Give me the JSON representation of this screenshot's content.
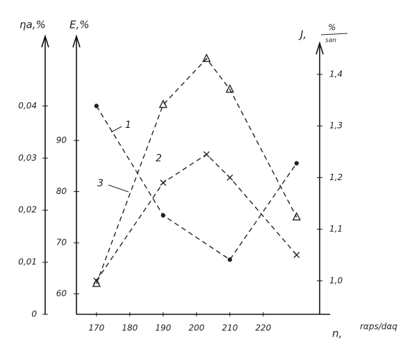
{
  "chart_data": {
    "type": "line",
    "y_label": "ηa,%",
    "y2_label": "E,%",
    "y3_label": "J,",
    "y3_unit_top": "%",
    "y3_unit_bottom": "san",
    "x_label": "n,",
    "x_unit": "rαps/dαq",
    "xlim": [
      164,
      239
    ],
    "xticks": [
      170,
      180,
      190,
      200,
      210,
      220
    ],
    "ylim": [
      0,
      0.053
    ],
    "yticks": [
      0,
      {
        "value": 0.01,
        "label": "0,01"
      },
      {
        "value": 0.02,
        "label": "0,02"
      },
      {
        "value": 0.03,
        "label": "0,03"
      },
      {
        "value": 0.04,
        "label": "0,04"
      }
    ],
    "y2lim": [
      56,
      110
    ],
    "y2ticks": [
      60,
      70,
      80,
      90
    ],
    "y3lim": [
      0.935,
      1.47
    ],
    "y3ticks": [
      {
        "value": 1.0,
        "label": "1,0"
      },
      {
        "value": 1.1,
        "label": "1,1"
      },
      {
        "value": 1.2,
        "label": "1,2"
      },
      {
        "value": 1.3,
        "label": "1,3"
      },
      {
        "value": 1.4,
        "label": "1,4"
      }
    ],
    "series": [
      {
        "name": "1",
        "axis": "y",
        "marker": "circle",
        "color": "#222",
        "x": [
          170,
          190,
          210,
          230
        ],
        "values": [
          0.04,
          0.019,
          0.0105,
          0.029
        ]
      },
      {
        "name": "2",
        "axis": "y2",
        "marker": "triangle",
        "color": "#222",
        "x": [
          170,
          190,
          203,
          210,
          230
        ],
        "values": [
          62,
          97,
          106,
          100,
          75
        ]
      },
      {
        "name": "3",
        "axis": "y3",
        "marker": "cross",
        "color": "#222",
        "x": [
          170,
          190,
          203,
          210,
          230
        ],
        "values": [
          1.0,
          1.19,
          1.245,
          1.2,
          1.05
        ]
      }
    ]
  }
}
